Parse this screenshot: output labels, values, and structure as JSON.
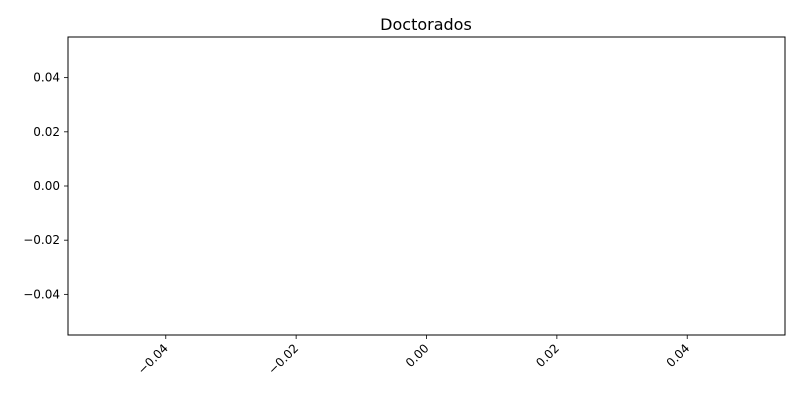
{
  "chart_data": {
    "type": "line",
    "title": "Doctorados",
    "xlabel": "",
    "ylabel": "",
    "series": [],
    "xlim": [
      -0.055,
      0.055
    ],
    "ylim": [
      -0.055,
      0.055
    ],
    "x_ticks": [
      -0.04,
      -0.02,
      0.0,
      0.02,
      0.04
    ],
    "x_tick_labels": [
      "−0.04",
      "−0.02",
      "0.00",
      "0.02",
      "0.04"
    ],
    "y_ticks": [
      0.04,
      0.02,
      0.0,
      -0.02,
      -0.04
    ],
    "y_tick_labels": [
      "0.04",
      "0.02",
      "0.00",
      "−0.02",
      "−0.04"
    ],
    "x_tick_label_rotation": "45 degrees",
    "grid": false,
    "legend": "none",
    "colors": {
      "axis": "#000000",
      "background": "#ffffff"
    }
  }
}
